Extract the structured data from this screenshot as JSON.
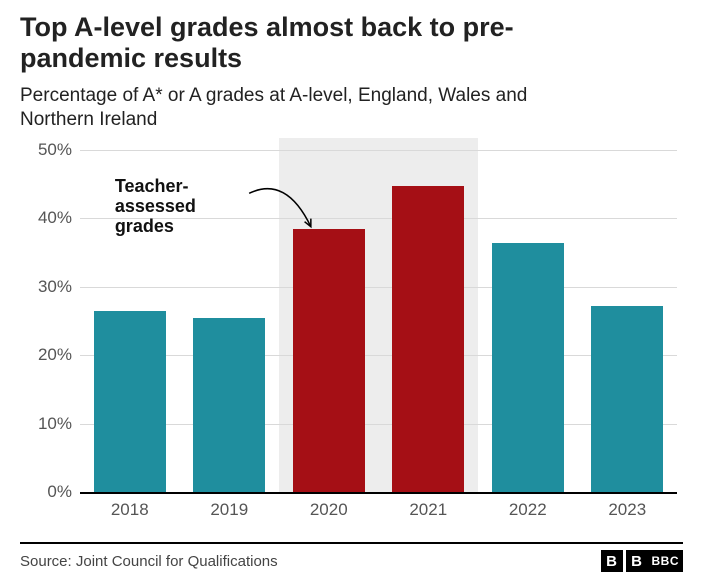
{
  "title": "Top A-level grades almost back to pre-pandemic results",
  "title_fontsize": 27,
  "subtitle": "Percentage of A* or A grades at A-level, England, Wales and Northern Ireland",
  "subtitle_fontsize": 19,
  "source": "Source: Joint Council for Qualifications",
  "logo": {
    "boxes": [
      "B",
      "B"
    ],
    "text": "BBC"
  },
  "chart": {
    "type": "bar",
    "categories": [
      "2018",
      "2019",
      "2020",
      "2021",
      "2022",
      "2023"
    ],
    "values": [
      26.4,
      25.5,
      38.5,
      44.8,
      36.4,
      27.2
    ],
    "bar_colors": [
      "#1f8e9e",
      "#1f8e9e",
      "#a50f15",
      "#a50f15",
      "#1f8e9e",
      "#1f8e9e"
    ],
    "ylim": [
      0,
      50
    ],
    "ytick_step": 10,
    "y_suffix": "%",
    "axis_label_fontsize": 17,
    "grid_color": "#d9d9d9",
    "baseline_color": "#000000",
    "background_color": "#ffffff",
    "bar_width": 0.72,
    "highlight_band": {
      "from_index": 2,
      "to_index": 3,
      "color": "#ededed"
    },
    "annotation": {
      "text": "Teacher-assessed grades",
      "pointing_to_index": 2,
      "fontsize": 18
    }
  }
}
